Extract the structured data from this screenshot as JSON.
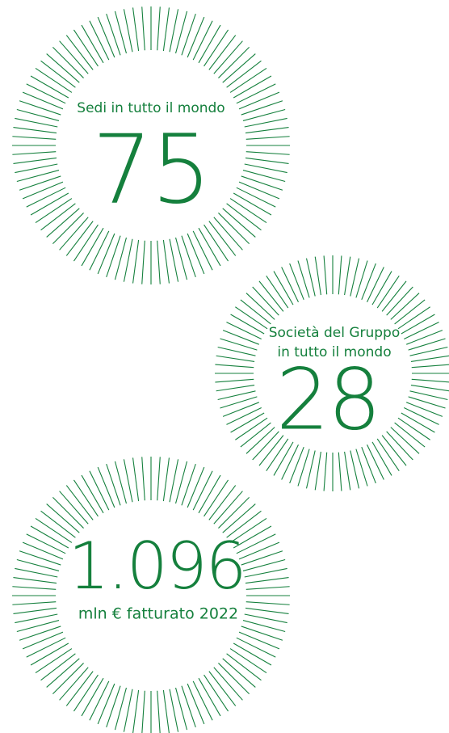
{
  "stats": [
    {
      "label": [
        "Sedi in tutto il mondo"
      ],
      "value": "75"
    },
    {
      "label": [
        "Società del Gruppo",
        "in tutto il mondo"
      ],
      "value": "28"
    },
    {
      "value": "1.096",
      "label": [
        "mln € fatturato 2022"
      ]
    }
  ]
}
